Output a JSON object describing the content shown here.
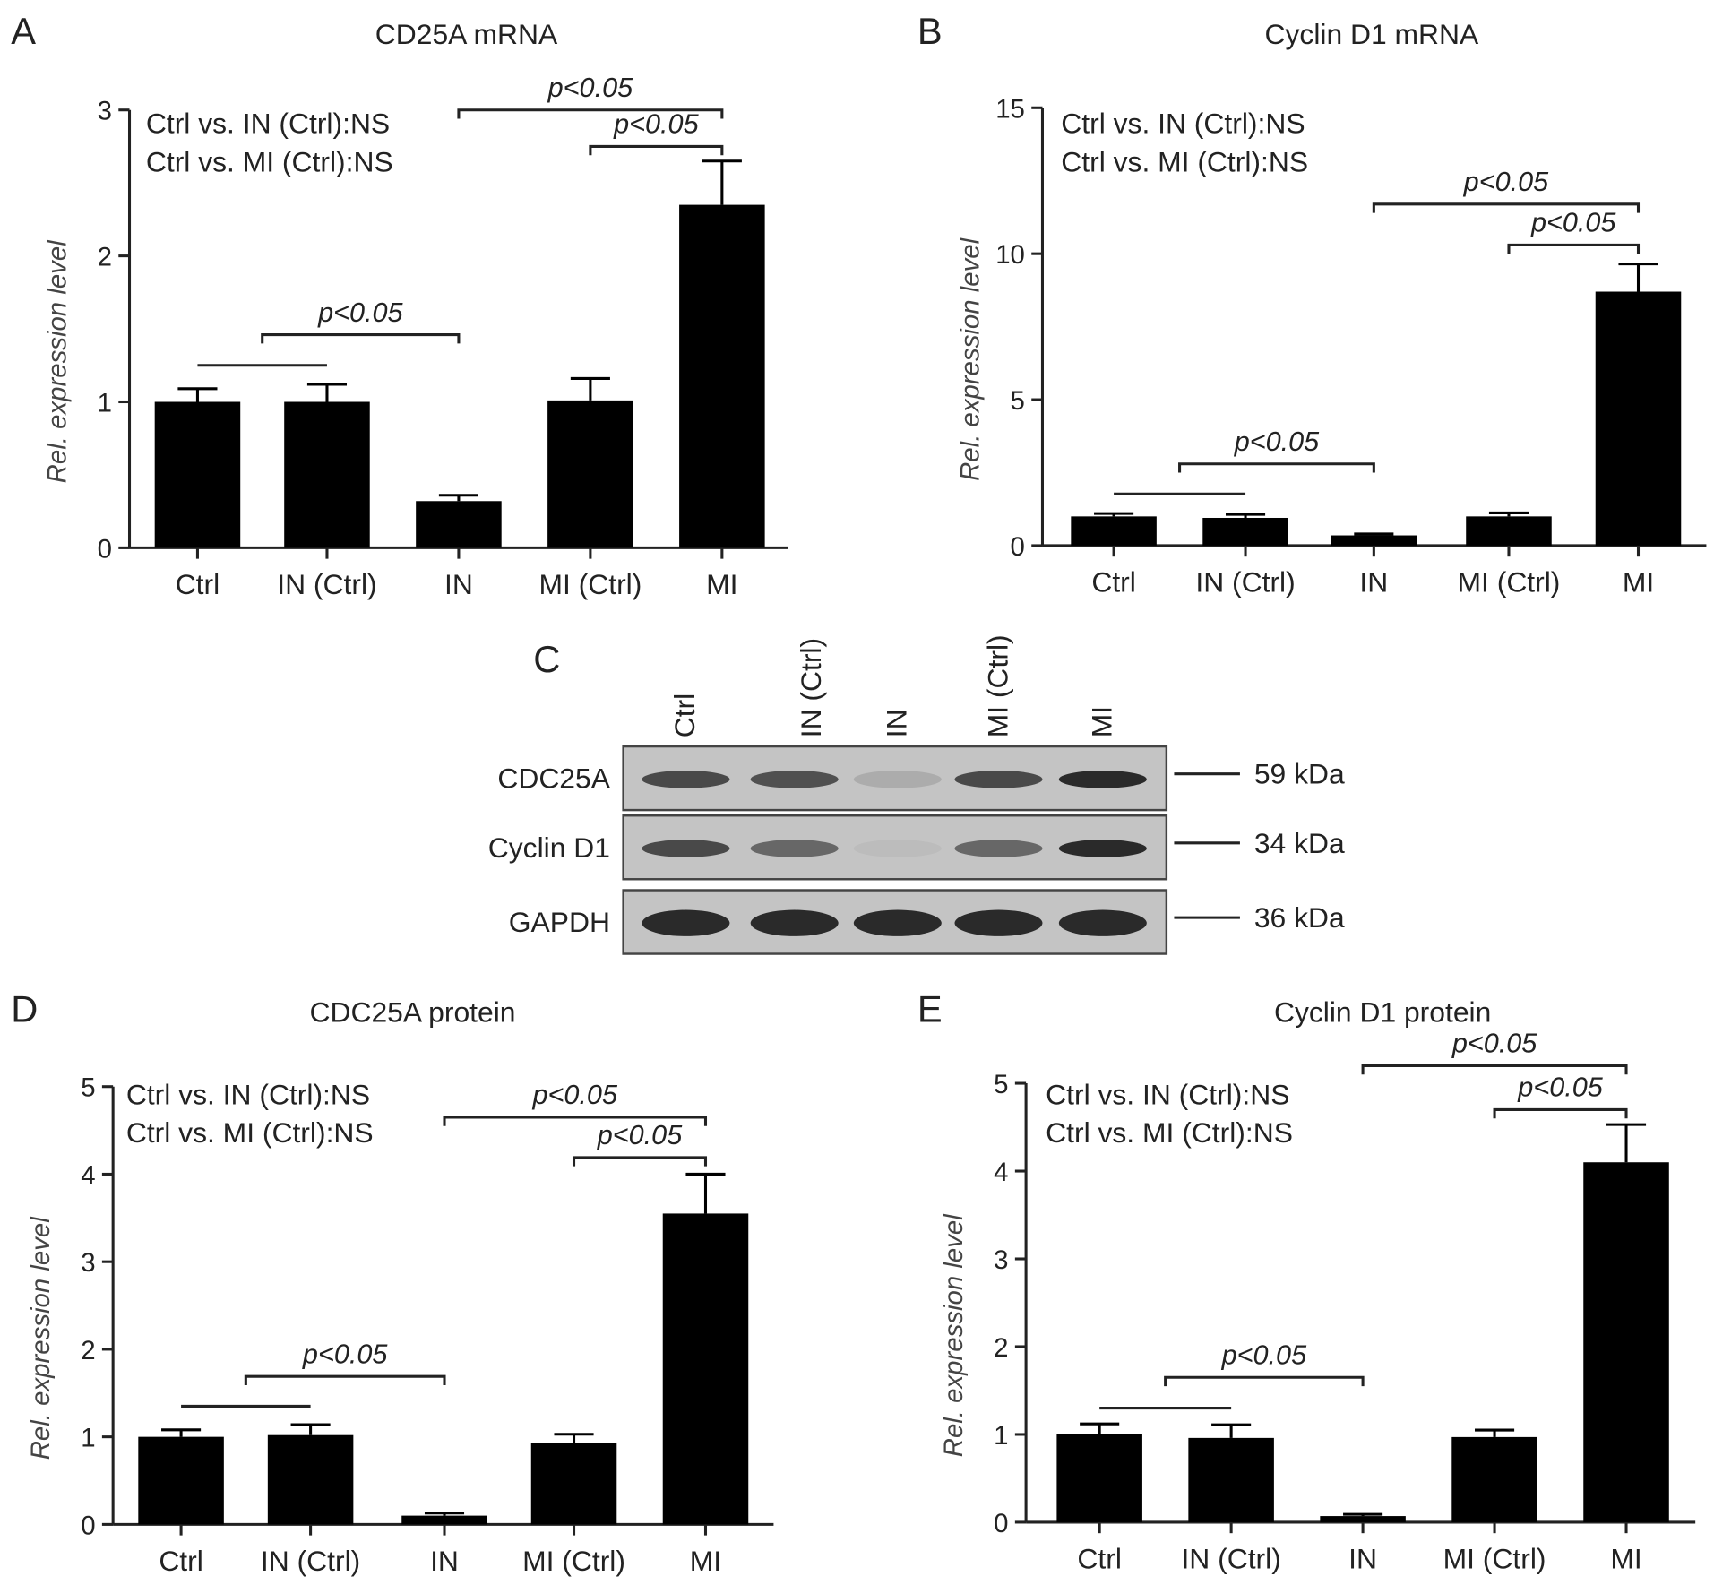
{
  "chart_data": [
    {
      "panel": "A",
      "type": "bar",
      "title": "CD25A mRNA",
      "ylabel": "Rel. expression level",
      "categories": [
        "Ctrl",
        "IN (Ctrl)",
        "IN",
        "MI (Ctrl)",
        "MI"
      ],
      "values": [
        1.0,
        1.0,
        0.32,
        1.01,
        2.35
      ],
      "errors": [
        0.09,
        0.12,
        0.04,
        0.15,
        0.3
      ],
      "ylim": [
        0,
        3
      ],
      "yticks": [
        "0",
        "1",
        "2",
        "3"
      ],
      "notes": [
        "Ctrl vs. IN (Ctrl):NS",
        "Ctrl vs. MI (Ctrl):NS"
      ],
      "brackets": [
        {
          "from": 0,
          "to": 1,
          "y": 1.25,
          "label": ""
        },
        {
          "from": 0.5,
          "to": 2,
          "y": 1.46,
          "label": "p<0.05"
        },
        {
          "from": 2,
          "to": 4,
          "y": 3.0,
          "label": "p<0.05"
        },
        {
          "from": 3,
          "to": 4,
          "y": 2.75,
          "label": "p<0.05"
        }
      ]
    },
    {
      "panel": "B",
      "type": "bar",
      "title": "Cyclin D1 mRNA",
      "ylabel": "Rel. expression level",
      "categories": [
        "Ctrl",
        "IN (Ctrl)",
        "IN",
        "MI (Ctrl)",
        "MI"
      ],
      "values": [
        1.0,
        0.95,
        0.35,
        1.0,
        8.7
      ],
      "errors": [
        0.1,
        0.12,
        0.05,
        0.12,
        0.95
      ],
      "ylim": [
        0,
        15
      ],
      "yticks": [
        "0",
        "5",
        "10",
        "15"
      ],
      "notes": [
        "Ctrl vs. IN (Ctrl):NS",
        "Ctrl vs. MI (Ctrl):NS"
      ],
      "brackets": [
        {
          "from": 0,
          "to": 1,
          "y": 1.77,
          "label": ""
        },
        {
          "from": 0.5,
          "to": 2,
          "y": 2.8,
          "label": "p<0.05"
        },
        {
          "from": 2,
          "to": 4,
          "y": 11.7,
          "label": "p<0.05"
        },
        {
          "from": 3,
          "to": 4,
          "y": 10.3,
          "label": "p<0.05"
        }
      ]
    },
    {
      "panel": "D",
      "type": "bar",
      "title": "CDC25A protein",
      "ylabel": "Rel. expression level",
      "categories": [
        "Ctrl",
        "IN (Ctrl)",
        "IN",
        "MI (Ctrl)",
        "MI"
      ],
      "values": [
        1.0,
        1.02,
        0.1,
        0.93,
        3.55
      ],
      "errors": [
        0.08,
        0.12,
        0.03,
        0.1,
        0.45
      ],
      "ylim": [
        0,
        5
      ],
      "yticks": [
        "0",
        "1",
        "2",
        "3",
        "4",
        "5"
      ],
      "notes": [
        "Ctrl vs. IN (Ctrl):NS",
        "Ctrl vs. MI (Ctrl):NS"
      ],
      "brackets": [
        {
          "from": 0,
          "to": 1,
          "y": 1.35,
          "label": ""
        },
        {
          "from": 0.5,
          "to": 2,
          "y": 1.69,
          "label": "p<0.05"
        },
        {
          "from": 2,
          "to": 4,
          "y": 4.65,
          "label": "p<0.05"
        },
        {
          "from": 3,
          "to": 4,
          "y": 4.19,
          "label": "p<0.05"
        }
      ]
    },
    {
      "panel": "E",
      "type": "bar",
      "title": "Cyclin D1 protein",
      "ylabel": "Rel. expression level",
      "categories": [
        "Ctrl",
        "IN (Ctrl)",
        "IN",
        "MI (Ctrl)",
        "MI"
      ],
      "values": [
        1.0,
        0.96,
        0.07,
        0.97,
        4.1
      ],
      "errors": [
        0.12,
        0.15,
        0.02,
        0.08,
        0.43
      ],
      "ylim": [
        0,
        5
      ],
      "yticks": [
        "0",
        "1",
        "2",
        "3",
        "4",
        "5"
      ],
      "notes": [
        "Ctrl vs. IN (Ctrl):NS",
        "Ctrl vs. MI (Ctrl):NS"
      ],
      "brackets": [
        {
          "from": 0,
          "to": 1,
          "y": 1.3,
          "label": ""
        },
        {
          "from": 0.5,
          "to": 2,
          "y": 1.65,
          "label": "p<0.05"
        },
        {
          "from": 2,
          "to": 4,
          "y": 5.2,
          "label": "p<0.05"
        },
        {
          "from": 3,
          "to": 4,
          "y": 4.7,
          "label": "p<0.05"
        }
      ]
    }
  ],
  "blot": {
    "panel": "C",
    "lanes": [
      "Ctrl",
      "IN (Ctrl)",
      "IN",
      "MI (Ctrl)",
      "MI"
    ],
    "rows": [
      {
        "protein": "CDC25A",
        "size": "59 kDa"
      },
      {
        "protein": "Cyclin D1",
        "size": "34 kDa"
      },
      {
        "protein": "GAPDH",
        "size": "36 kDa"
      }
    ]
  },
  "colors": {
    "bar": "#000000",
    "membrane": "#c4c4c4",
    "band": "#2a2a2a"
  }
}
